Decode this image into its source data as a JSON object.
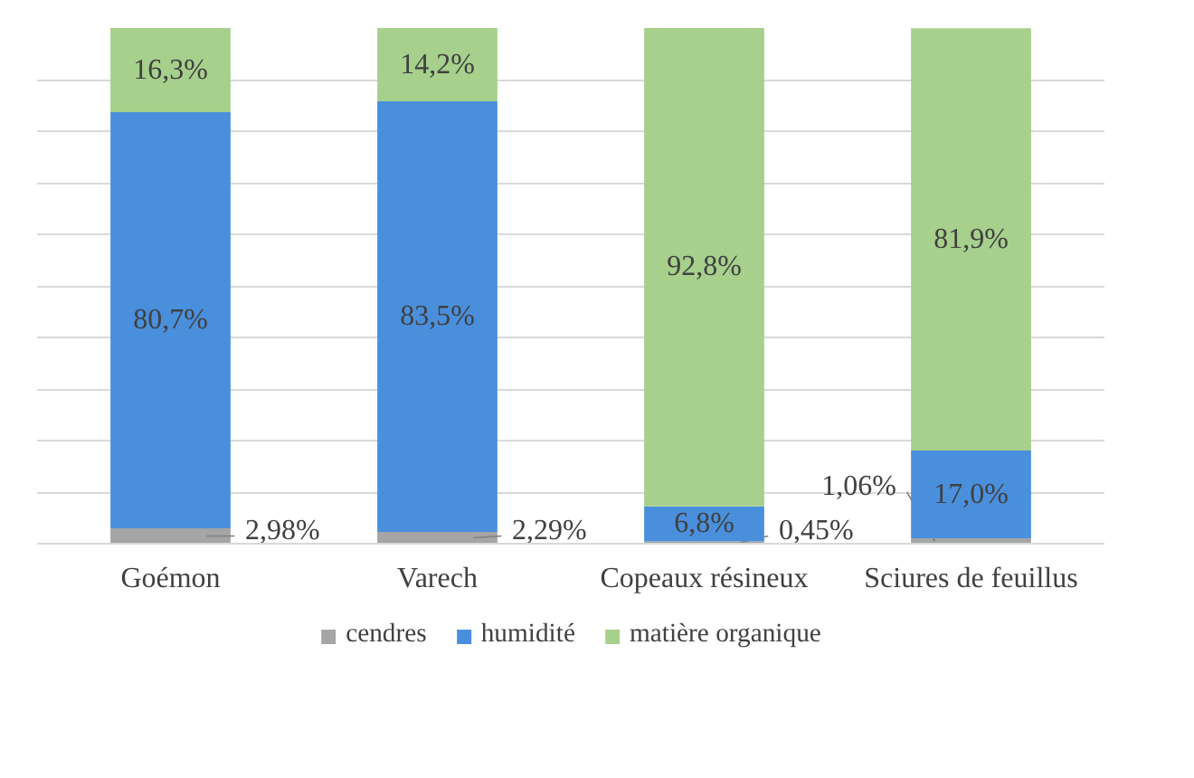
{
  "chart_data": {
    "type": "bar",
    "stacked": true,
    "categories": [
      "Goémon",
      "Varech",
      "Copeaux résineux",
      "Sciures de feuillus"
    ],
    "series": [
      {
        "name": "cendres",
        "color": "#a5a5a5",
        "values": [
          2.98,
          2.29,
          0.45,
          1.06
        ],
        "value_labels": [
          "2,98%",
          "2,29%",
          "0,45%",
          "1,06%"
        ]
      },
      {
        "name": "humidité",
        "color": "#4a8fdc",
        "values": [
          80.7,
          83.5,
          6.8,
          17.0
        ],
        "value_labels": [
          "80,7%",
          "83,5%",
          "6,8%",
          "17,0%"
        ]
      },
      {
        "name": "matière organique",
        "color": "#a6d08c",
        "values": [
          16.3,
          14.2,
          92.8,
          81.9
        ],
        "value_labels": [
          "16,3%",
          "14,2%",
          "92,8%",
          "81,9%"
        ]
      }
    ],
    "ylim": [
      0,
      100
    ],
    "yticks": [
      {
        "value": 0,
        "label": null
      },
      {
        "value": 10,
        "label": null
      },
      {
        "value": 20,
        "label": null
      },
      {
        "value": 30,
        "label": null
      },
      {
        "value": 40,
        "label": null
      },
      {
        "value": 50,
        "label": null
      },
      {
        "value": 60,
        "label": null
      },
      {
        "value": 70,
        "label": null
      },
      {
        "value": 80,
        "label": null
      },
      {
        "value": 90,
        "label": null
      }
    ],
    "tick_labels": "x",
    "grid": "y",
    "legend": "bottom"
  }
}
